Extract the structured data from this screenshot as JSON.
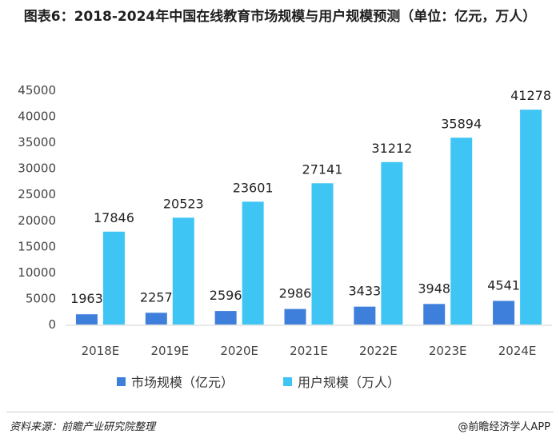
{
  "title": "图表6：2018-2024年中国在线教育市场规模与用户规模预测（单位：亿元，万人）",
  "footer": {
    "source": "资料来源：前瞻产业研究院整理",
    "credit": "@前瞻经济学人APP"
  },
  "chart_data": {
    "type": "bar",
    "title": "图表6：2018-2024年中国在线教育市场规模与用户规模预测（单位：亿元，万人）",
    "categories": [
      "2018E",
      "2019E",
      "2020E",
      "2021E",
      "2022E",
      "2023E",
      "2024E"
    ],
    "series": [
      {
        "name": "市场规模（亿元）",
        "color": "#3f7fdc",
        "values": [
          1963,
          2257,
          2596,
          2986,
          3433,
          3948,
          4541
        ]
      },
      {
        "name": "用户规模（万人）",
        "color": "#3ec5f4",
        "values": [
          17846,
          20523,
          23601,
          27141,
          31212,
          35894,
          41278
        ]
      }
    ],
    "ylim": [
      0,
      45000
    ],
    "yticks": [
      0,
      5000,
      10000,
      15000,
      20000,
      25000,
      30000,
      35000,
      40000,
      45000
    ],
    "xlabel": "",
    "ylabel": "",
    "grid": false,
    "legend": "bottom"
  }
}
